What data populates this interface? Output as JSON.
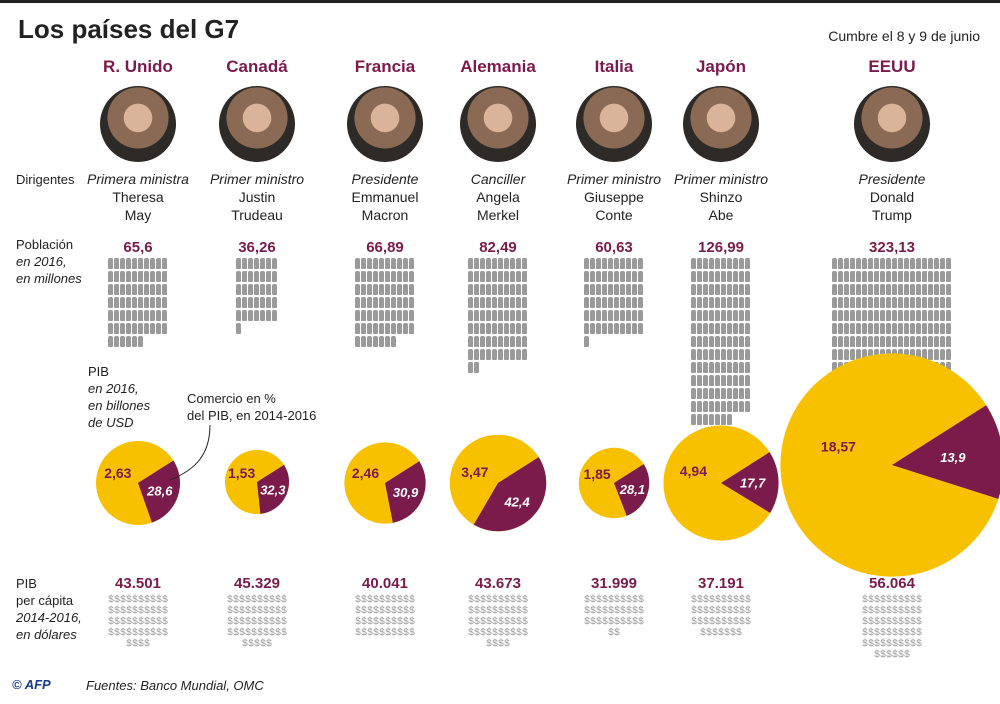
{
  "title": "Los países del G7",
  "subtitle": "Cumbre el 8 y 9 de junio",
  "row_labels": {
    "leaders": "Dirigentes",
    "population": "Población",
    "population_sub1": "en 2016,",
    "population_sub2": "en millones",
    "pib": "PIB",
    "pib_sub1": "en 2016,",
    "pib_sub2": "en billones",
    "pib_sub3": "de USD",
    "trade1": "Comercio en %",
    "trade2": "del PIB, en 2014-2016",
    "gdp_pc1": "PIB",
    "gdp_pc2": "per cápita",
    "gdp_pc3": "2014-2016,",
    "gdp_pc4": "en dólares"
  },
  "footer": {
    "logo": "© AFP",
    "sources": "Fuentes: Banco Mundial, OMC"
  },
  "colors": {
    "gdp": "#f7c100",
    "trade": "#7b1b4c",
    "accent": "#7b1b4c",
    "figure": "#9a9a9a"
  },
  "countries": [
    {
      "name": "R. Unido",
      "role": "Primera ministra",
      "first": "Theresa",
      "last": "May"
    },
    {
      "name": "Canadá",
      "role": "Primer ministro",
      "first": "Justin",
      "last": "Trudeau"
    },
    {
      "name": "Francia",
      "role": "Presidente",
      "first": "Emmanuel",
      "last": "Macron"
    },
    {
      "name": "Alemania",
      "role": "Canciller",
      "first": "Angela",
      "last": "Merkel"
    },
    {
      "name": "Italia",
      "role": "Primer ministro",
      "first": "Giuseppe",
      "last": "Conte"
    },
    {
      "name": "Japón",
      "role": "Primer ministro",
      "first": "Shinzo",
      "last": "Abe"
    },
    {
      "name": "EEUU",
      "role": "Presidente",
      "first": "Donald",
      "last": "Trump"
    }
  ],
  "chart_data": {
    "type": "table",
    "categories": [
      "R. Unido",
      "Canadá",
      "Francia",
      "Alemania",
      "Italia",
      "Japón",
      "EEUU"
    ],
    "population_millions": [
      "65,6",
      "36,26",
      "66,89",
      "82,49",
      "60,63",
      "126,99",
      "323,13"
    ],
    "population_values": [
      65.6,
      36.26,
      66.89,
      82.49,
      60.63,
      126.99,
      323.13
    ],
    "gdp_trillion_usd": [
      "2,63",
      "1,53",
      "2,46",
      "3,47",
      "1,85",
      "4,94",
      "18,57"
    ],
    "gdp_values": [
      2.63,
      1.53,
      2.46,
      3.47,
      1.85,
      4.94,
      18.57
    ],
    "trade_pct_gdp": [
      "28,6",
      "32,3",
      "30,9",
      "42,4",
      "28,1",
      "17,7",
      "13,9"
    ],
    "trade_values": [
      28.6,
      32.3,
      30.9,
      42.4,
      28.1,
      17.7,
      13.9
    ],
    "gdp_per_capita_usd": [
      "43.501",
      "45.329",
      "40.041",
      "43.673",
      "31.999",
      "37.191",
      "56.064"
    ]
  }
}
